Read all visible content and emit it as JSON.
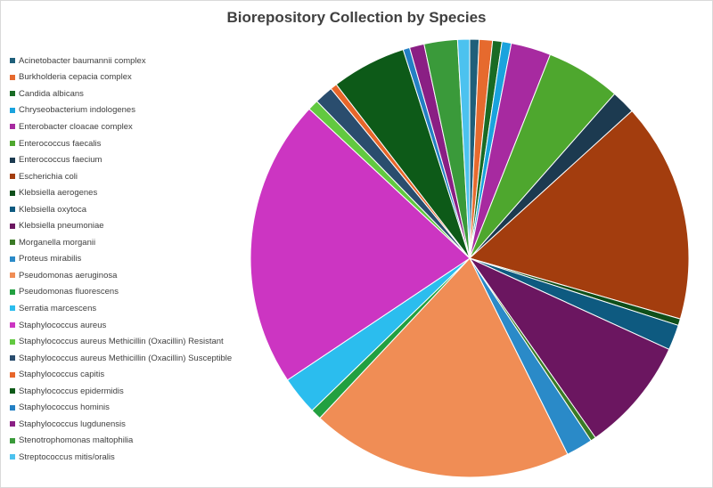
{
  "chart_data": {
    "type": "pie",
    "title": "Biorepository Collection by Species",
    "legend_position": "left",
    "slices": [
      {
        "label": "Acinetobacter baumannii complex",
        "value": 0.7,
        "color": "#1f5f7a"
      },
      {
        "label": "Burkholderia cepacia complex",
        "value": 1.0,
        "color": "#e66a2e"
      },
      {
        "label": "Candida albicans",
        "value": 0.7,
        "color": "#196b24"
      },
      {
        "label": "Chryseobacterium indologenes",
        "value": 0.7,
        "color": "#1aa3de"
      },
      {
        "label": "Enterobacter cloacae complex",
        "value": 3.0,
        "color": "#a72aa0"
      },
      {
        "label": "Enterococcus faecalis",
        "value": 5.6,
        "color": "#4ea72e"
      },
      {
        "label": "Enterococcus faecium",
        "value": 1.8,
        "color": "#1c3a50"
      },
      {
        "label": "Escherichia coli",
        "value": 16.5,
        "color": "#a33d0e"
      },
      {
        "label": "Klebsiella aerogenes",
        "value": 0.5,
        "color": "#0f4f1a"
      },
      {
        "label": "Klebsiella oxytoca",
        "value": 1.9,
        "color": "#0e5a80"
      },
      {
        "label": "Klebsiella pneumoniae",
        "value": 8.6,
        "color": "#6b1660"
      },
      {
        "label": "Morganella morganii",
        "value": 0.4,
        "color": "#3a7a25"
      },
      {
        "label": "Proteus mirabilis",
        "value": 2.0,
        "color": "#2a8ac8"
      },
      {
        "label": "Pseudomonas aeruginosa",
        "value": 19.7,
        "color": "#f08d55"
      },
      {
        "label": "Pseudomonas fluorescens",
        "value": 0.8,
        "color": "#22a040"
      },
      {
        "label": "Serratia marcescens",
        "value": 2.9,
        "color": "#2bbdee"
      },
      {
        "label": "Staphylococcus aureus",
        "value": 21.7,
        "color": "#cc35c2"
      },
      {
        "label": "Staphylococcus aureus Methicillin (Oxacillin) Resistant",
        "value": 0.8,
        "color": "#62c940"
      },
      {
        "label": "Staphylococcus aureus Methicillin (Oxacillin) Susceptible",
        "value": 1.4,
        "color": "#2a4d6e"
      },
      {
        "label": "Staphylococcus capitis",
        "value": 0.5,
        "color": "#e8662a"
      },
      {
        "label": "Staphylococcus epidermidis",
        "value": 5.6,
        "color": "#0d5a18"
      },
      {
        "label": "Staphylococcus hominis",
        "value": 0.5,
        "color": "#2380c4"
      },
      {
        "label": "Staphylococcus lugdunensis",
        "value": 1.1,
        "color": "#8a1f84"
      },
      {
        "label": "Stenotrophomonas maltophilia",
        "value": 2.5,
        "color": "#3a9a3a"
      },
      {
        "label": "Streptococcus mitis/oralis",
        "value": 0.9,
        "color": "#4cc2ef"
      }
    ]
  }
}
